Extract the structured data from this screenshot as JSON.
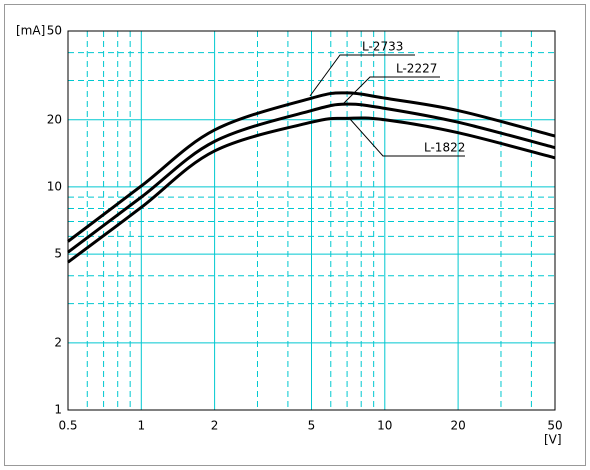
{
  "chart_data": {
    "type": "line",
    "log_x": true,
    "log_y": true,
    "grid": true,
    "grid_color": "#00c8d0",
    "y_unit": "[mA]",
    "x_unit": "[V]",
    "x": [
      0.5,
      1,
      2,
      5,
      7,
      10,
      20,
      50
    ],
    "xlim": [
      0.5,
      50
    ],
    "ylim": [
      1,
      50
    ],
    "xticks": [
      0.5,
      1,
      2,
      5,
      10,
      20,
      50
    ],
    "yticks": [
      1,
      2,
      5,
      10,
      20,
      50
    ],
    "x_minor_grid": [
      0.6,
      0.7,
      0.8,
      0.9,
      3,
      4,
      6,
      7,
      8,
      9,
      30,
      40
    ],
    "y_minor_grid": [
      3,
      4,
      6,
      7,
      8,
      9,
      30,
      40
    ],
    "series": [
      {
        "name": "L-2733",
        "color": "#000000",
        "values": [
          5.7,
          10.1,
          18,
          25,
          26.4,
          25,
          22,
          16.9
        ]
      },
      {
        "name": "L-2227",
        "color": "#000000",
        "values": [
          5.1,
          9,
          16,
          22,
          23.5,
          22.5,
          19.5,
          15
        ]
      },
      {
        "name": "L-1822",
        "color": "#000000",
        "values": [
          4.6,
          8.1,
          14.5,
          19.5,
          20.3,
          20,
          17.5,
          13.5
        ]
      }
    ]
  }
}
